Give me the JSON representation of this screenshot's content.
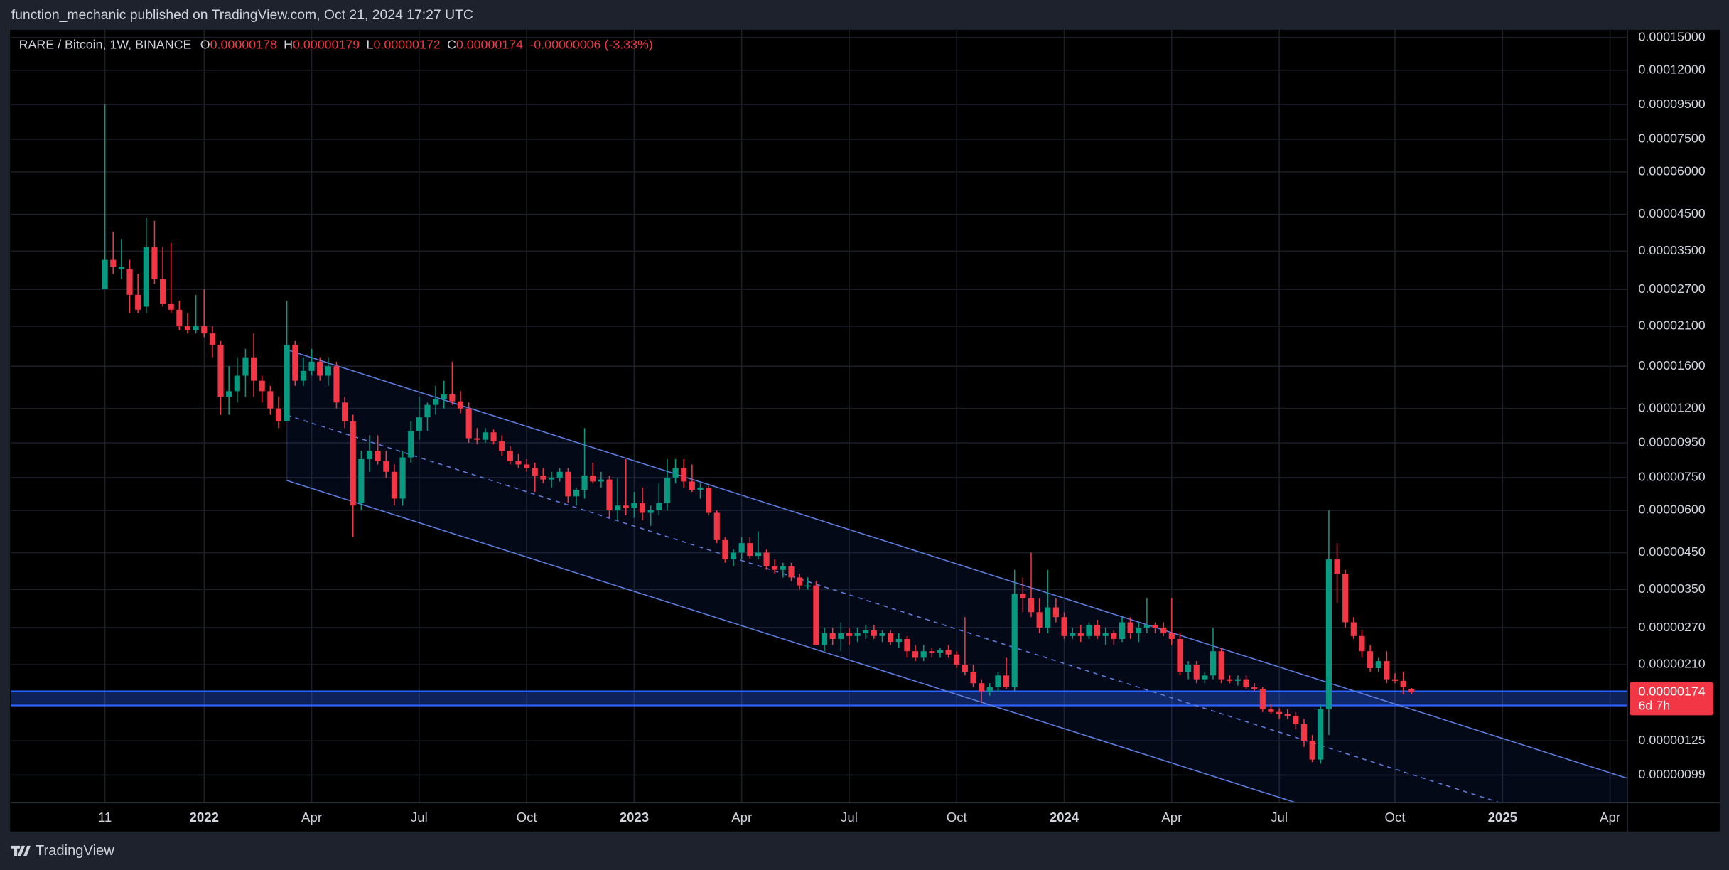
{
  "page": {
    "published": "function_mechanic published on TradingView.com, Oct 21, 2024 17:27 UTC",
    "brand": "TradingView"
  },
  "chart_data": {
    "type": "candlestick",
    "symbol": "RARE / Bitcoin, 1W, BINANCE",
    "legend": {
      "o_label": "O",
      "o": "0.00000178",
      "h_label": "H",
      "h": "0.00000179",
      "l_label": "L",
      "l": "0.00000172",
      "c_label": "C",
      "c": "0.00000174",
      "change": "-0.00000006 (-3.33%)"
    },
    "price_label": {
      "value": "0.00000174",
      "countdown": "6d 7h"
    },
    "up_color": "#089981",
    "down_color": "#f23645",
    "grid": true,
    "log_scale": true,
    "xlim": [
      -11.33,
      184.1
    ],
    "xticks": [
      {
        "value": 0,
        "label": "11"
      },
      {
        "value": 12,
        "label": "2022"
      },
      {
        "value": 25,
        "label": "Apr"
      },
      {
        "value": 38,
        "label": "Jul"
      },
      {
        "value": 51,
        "label": "Oct"
      },
      {
        "value": 64,
        "label": "2023"
      },
      {
        "value": 77,
        "label": "Apr"
      },
      {
        "value": 90,
        "label": "Jul"
      },
      {
        "value": 103,
        "label": "Oct"
      },
      {
        "value": 116,
        "label": "2024"
      },
      {
        "value": 129,
        "label": "Apr"
      },
      {
        "value": 142,
        "label": "Jul"
      },
      {
        "value": 156,
        "label": "Oct"
      },
      {
        "value": 169,
        "label": "2025"
      },
      {
        "value": 182,
        "label": "Apr"
      }
    ],
    "ylim": [
      8.2e-07,
      0.000158
    ],
    "yticks": [
      {
        "value": 0.00015,
        "label": "0.00015000"
      },
      {
        "value": 0.00012,
        "label": "0.00012000"
      },
      {
        "value": 9.5e-05,
        "label": "0.00009500"
      },
      {
        "value": 7.5e-05,
        "label": "0.00007500"
      },
      {
        "value": 6e-05,
        "label": "0.00006000"
      },
      {
        "value": 4.5e-05,
        "label": "0.00004500"
      },
      {
        "value": 3.5e-05,
        "label": "0.00003500"
      },
      {
        "value": 2.7e-05,
        "label": "0.00002700"
      },
      {
        "value": 2.1e-05,
        "label": "0.00002100"
      },
      {
        "value": 1.6e-05,
        "label": "0.00001600"
      },
      {
        "value": 1.2e-05,
        "label": "0.00001200"
      },
      {
        "value": 9.5e-06,
        "label": "0.00000950"
      },
      {
        "value": 7.5e-06,
        "label": "0.00000750"
      },
      {
        "value": 6e-06,
        "label": "0.00000600"
      },
      {
        "value": 4.5e-06,
        "label": "0.00000450"
      },
      {
        "value": 3.5e-06,
        "label": "0.00000350"
      },
      {
        "value": 2.7e-06,
        "label": "0.00000270"
      },
      {
        "value": 2.1e-06,
        "label": "0.00000210"
      },
      {
        "value": 1.25e-06,
        "label": "0.00000125"
      },
      {
        "value": 9.9e-07,
        "label": "0.00000099"
      }
    ],
    "zone": [
      1.59e-06,
      1.75e-06
    ],
    "channel": {
      "start": 22,
      "end": 184,
      "upper": [
        1.79e-05,
        9.7e-07
      ],
      "lower": [
        7.35e-06,
        4e-07
      ]
    },
    "ohlc": [
      [
        2.7e-05,
        9.5e-05,
        2.7e-05,
        3.3e-05
      ],
      [
        3.3e-05,
        4e-05,
        3e-05,
        3.15e-05
      ],
      [
        3.1e-05,
        3.8e-05,
        2.9e-05,
        3.15e-05
      ],
      [
        3.1e-05,
        3.3e-05,
        2.3e-05,
        2.6e-05
      ],
      [
        2.6e-05,
        3e-05,
        2.3e-05,
        2.35e-05
      ],
      [
        2.4e-05,
        4.4e-05,
        2.3e-05,
        3.6e-05
      ],
      [
        3.6e-05,
        4.3e-05,
        2.8e-05,
        2.9e-05
      ],
      [
        2.9e-05,
        3.6e-05,
        2.4e-05,
        2.45e-05
      ],
      [
        2.45e-05,
        3.7e-05,
        2.3e-05,
        2.35e-05
      ],
      [
        2.35e-05,
        2.5e-05,
        2.05e-05,
        2.1e-05
      ],
      [
        2.1e-05,
        2.3e-05,
        2e-05,
        2.05e-05
      ],
      [
        2.05e-05,
        2.6e-05,
        2e-05,
        2.1e-05
      ],
      [
        2.1e-05,
        2.7e-05,
        1.95e-05,
        2e-05
      ],
      [
        2e-05,
        2.1e-05,
        1.7e-05,
        1.85e-05
      ],
      [
        1.85e-05,
        1.9e-05,
        1.15e-05,
        1.3e-05
      ],
      [
        1.3e-05,
        1.6e-05,
        1.15e-05,
        1.35e-05
      ],
      [
        1.35e-05,
        1.7e-05,
        1.25e-05,
        1.5e-05
      ],
      [
        1.5e-05,
        1.8e-05,
        1.3e-05,
        1.7e-05
      ],
      [
        1.7e-05,
        2e-05,
        1.3e-05,
        1.45e-05
      ],
      [
        1.45e-05,
        1.5e-05,
        1.25e-05,
        1.35e-05
      ],
      [
        1.35e-05,
        1.4e-05,
        1.15e-05,
        1.2e-05
      ],
      [
        1.2e-05,
        1.3e-05,
        1.05e-05,
        1.1e-05
      ],
      [
        1.1e-05,
        2.5e-05,
        1.1e-05,
        1.85e-05
      ],
      [
        1.85e-05,
        1.9e-05,
        1.4e-05,
        1.45e-05
      ],
      [
        1.45e-05,
        1.7e-05,
        1.4e-05,
        1.55e-05
      ],
      [
        1.55e-05,
        1.8e-05,
        1.5e-05,
        1.65e-05
      ],
      [
        1.65e-05,
        1.7e-05,
        1.45e-05,
        1.5e-05
      ],
      [
        1.5e-05,
        1.7e-05,
        1.4e-05,
        1.6e-05
      ],
      [
        1.6e-05,
        1.65e-05,
        1.2e-05,
        1.25e-05
      ],
      [
        1.25e-05,
        1.3e-05,
        1.05e-05,
        1.1e-05
      ],
      [
        1.1e-05,
        1.15e-05,
        5e-06,
        6.2e-06
      ],
      [
        6.3e-06,
        9e-06,
        6e-06,
        8.5e-06
      ],
      [
        8.5e-06,
        1e-05,
        7.8e-06,
        9e-06
      ],
      [
        9e-06,
        1e-05,
        8.2e-06,
        8.4e-06
      ],
      [
        8.4e-06,
        9e-06,
        7.5e-06,
        7.8e-06
      ],
      [
        7.8e-06,
        8.2e-06,
        6.2e-06,
        6.5e-06
      ],
      [
        6.5e-06,
        9e-06,
        6.2e-06,
        8.6e-06
      ],
      [
        8.6e-06,
        1.1e-05,
        8.3e-06,
        1.03e-05
      ],
      [
        1.03e-05,
        1.3e-05,
        9.7e-06,
        1.13e-05
      ],
      [
        1.13e-05,
        1.25e-05,
        1.03e-05,
        1.23e-05
      ],
      [
        1.23e-05,
        1.4e-05,
        1.15e-05,
        1.28e-05
      ],
      [
        1.28e-05,
        1.45e-05,
        1.2e-05,
        1.32e-05
      ],
      [
        1.32e-05,
        1.65e-05,
        1.23e-05,
        1.26e-05
      ],
      [
        1.26e-05,
        1.35e-05,
        1.16e-05,
        1.2e-05
      ],
      [
        1.2e-05,
        1.25e-05,
        9.5e-06,
        9.8e-06
      ],
      [
        9.8e-06,
        1.05e-05,
        9.4e-06,
        9.7e-06
      ],
      [
        9.7e-06,
        1.05e-05,
        9.5e-06,
        1.02e-05
      ],
      [
        1.02e-05,
        1.04e-05,
        9.4e-06,
        9.6e-06
      ],
      [
        9.6e-06,
        1e-05,
        8.7e-06,
        9e-06
      ],
      [
        9e-06,
        9.3e-06,
        8.2e-06,
        8.4e-06
      ],
      [
        8.4e-06,
        8.8e-06,
        8e-06,
        8.2e-06
      ],
      [
        8.2e-06,
        8.5e-06,
        7.8e-06,
        8e-06
      ],
      [
        8e-06,
        8.3e-06,
        6.8e-06,
        7.6e-06
      ],
      [
        7.6e-06,
        8e-06,
        7.2e-06,
        7.4e-06
      ],
      [
        7.4e-06,
        7.8e-06,
        7e-06,
        7.5e-06
      ],
      [
        7.5e-06,
        8e-06,
        7.3e-06,
        7.8e-06
      ],
      [
        7.8e-06,
        8e-06,
        6.3e-06,
        6.6e-06
      ],
      [
        6.6e-06,
        7e-06,
        6.2e-06,
        6.9e-06
      ],
      [
        6.9e-06,
        1.05e-05,
        6.5e-06,
        7.6e-06
      ],
      [
        7.6e-06,
        8.3e-06,
        7.2e-06,
        7.3e-06
      ],
      [
        7.3e-06,
        7.8e-06,
        7e-06,
        7.4e-06
      ],
      [
        7.4e-06,
        7.6e-06,
        5.7e-06,
        6e-06
      ],
      [
        6e-06,
        7.5e-06,
        5.6e-06,
        6.2e-06
      ],
      [
        6.2e-06,
        8.5e-06,
        5.8e-06,
        6.1e-06
      ],
      [
        6.1e-06,
        6.8e-06,
        5.7e-06,
        6.3e-06
      ],
      [
        6.3e-06,
        7e-06,
        5.6e-06,
        5.9e-06
      ],
      [
        5.9e-06,
        6.2e-06,
        5.4e-06,
        6e-06
      ],
      [
        6e-06,
        7.2e-06,
        5.8e-06,
        6.3e-06
      ],
      [
        6.3e-06,
        8.5e-06,
        6e-06,
        7.5e-06
      ],
      [
        7.5e-06,
        8.5e-06,
        7.2e-06,
        8e-06
      ],
      [
        8e-06,
        8.5e-06,
        7e-06,
        7.3e-06
      ],
      [
        7.3e-06,
        8.2e-06,
        6.8e-06,
        6.9e-06
      ],
      [
        6.9e-06,
        7.2e-06,
        6.5e-06,
        7e-06
      ],
      [
        7e-06,
        7.1e-06,
        5.8e-06,
        5.9e-06
      ],
      [
        5.9e-06,
        6e-06,
        4.8e-06,
        4.9e-06
      ],
      [
        4.9e-06,
        5e-06,
        4.2e-06,
        4.3e-06
      ],
      [
        4.3e-06,
        4.6e-06,
        4.1e-06,
        4.5e-06
      ],
      [
        4.5e-06,
        5e-06,
        4.3e-06,
        4.8e-06
      ],
      [
        4.8e-06,
        5e-06,
        4.3e-06,
        4.4e-06
      ],
      [
        4.4e-06,
        5.2e-06,
        4.3e-06,
        4.5e-06
      ],
      [
        4.5e-06,
        4.6e-06,
        4e-06,
        4.1e-06
      ],
      [
        4.1e-06,
        4.3e-06,
        3.9e-06,
        4e-06
      ],
      [
        4e-06,
        4.2e-06,
        3.8e-06,
        4.1e-06
      ],
      [
        4.1e-06,
        4.2e-06,
        3.7e-06,
        3.8e-06
      ],
      [
        3.8e-06,
        3.9e-06,
        3.5e-06,
        3.6e-06
      ],
      [
        3.6e-06,
        3.8e-06,
        3.5e-06,
        3.6e-06
      ],
      [
        3.6e-06,
        3.7e-06,
        2.4e-06,
        2.4e-06
      ],
      [
        2.4e-06,
        2.7e-06,
        2.3e-06,
        2.6e-06
      ],
      [
        2.6e-06,
        2.7e-06,
        2.4e-06,
        2.5e-06
      ],
      [
        2.5e-06,
        2.8e-06,
        2.3e-06,
        2.6e-06
      ],
      [
        2.6e-06,
        2.7e-06,
        2.4e-06,
        2.55e-06
      ],
      [
        2.55e-06,
        2.7e-06,
        2.45e-06,
        2.6e-06
      ],
      [
        2.6e-06,
        2.75e-06,
        2.5e-06,
        2.65e-06
      ],
      [
        2.65e-06,
        2.75e-06,
        2.5e-06,
        2.55e-06
      ],
      [
        2.55e-06,
        2.65e-06,
        2.45e-06,
        2.6e-06
      ],
      [
        2.6e-06,
        2.65e-06,
        2.4e-06,
        2.45e-06
      ],
      [
        2.45e-06,
        2.6e-06,
        2.35e-06,
        2.5e-06
      ],
      [
        2.5e-06,
        2.55e-06,
        2.2e-06,
        2.3e-06
      ],
      [
        2.3e-06,
        2.4e-06,
        2.15e-06,
        2.2e-06
      ],
      [
        2.2e-06,
        2.4e-06,
        2.15e-06,
        2.3e-06
      ],
      [
        2.3e-06,
        2.35e-06,
        2.2e-06,
        2.28e-06
      ],
      [
        2.28e-06,
        2.35e-06,
        2.2e-06,
        2.32e-06
      ],
      [
        2.32e-06,
        2.4e-06,
        2.2e-06,
        2.25e-06
      ],
      [
        2.25e-06,
        2.3e-06,
        2.05e-06,
        2.1e-06
      ],
      [
        2.1e-06,
        2.9e-06,
        1.95e-06,
        2e-06
      ],
      [
        2e-06,
        2.1e-06,
        1.8e-06,
        1.85e-06
      ],
      [
        1.85e-06,
        1.9e-06,
        1.62e-06,
        1.75e-06
      ],
      [
        1.75e-06,
        1.85e-06,
        1.7e-06,
        1.8e-06
      ],
      [
        1.8e-06,
        2e-06,
        1.75e-06,
        1.95e-06
      ],
      [
        1.95e-06,
        2.2e-06,
        1.78e-06,
        1.8e-06
      ],
      [
        1.8e-06,
        4e-06,
        1.75e-06,
        3.4e-06
      ],
      [
        3.4e-06,
        3.8e-06,
        3e-06,
        3.3e-06
      ],
      [
        3.3e-06,
        4.5e-06,
        2.9e-06,
        3e-06
      ],
      [
        3e-06,
        3.3e-06,
        2.6e-06,
        2.7e-06
      ],
      [
        2.7e-06,
        4e-06,
        2.6e-06,
        3.1e-06
      ],
      [
        3.1e-06,
        3.3e-06,
        2.8e-06,
        2.9e-06
      ],
      [
        2.9e-06,
        3e-06,
        2.5e-06,
        2.55e-06
      ],
      [
        2.55e-06,
        2.7e-06,
        2.5e-06,
        2.6e-06
      ],
      [
        2.6e-06,
        2.75e-06,
        2.45e-06,
        2.55e-06
      ],
      [
        2.55e-06,
        2.8e-06,
        2.5e-06,
        2.75e-06
      ],
      [
        2.75e-06,
        2.85e-06,
        2.5e-06,
        2.55e-06
      ],
      [
        2.55e-06,
        2.7e-06,
        2.4e-06,
        2.6e-06
      ],
      [
        2.6e-06,
        2.65e-06,
        2.4e-06,
        2.5e-06
      ],
      [
        2.5e-06,
        2.9e-06,
        2.45e-06,
        2.8e-06
      ],
      [
        2.8e-06,
        2.9e-06,
        2.5e-06,
        2.6e-06
      ],
      [
        2.6e-06,
        2.8e-06,
        2.45e-06,
        2.7e-06
      ],
      [
        2.7e-06,
        3.3e-06,
        2.6e-06,
        2.75e-06
      ],
      [
        2.75e-06,
        2.8e-06,
        2.6e-06,
        2.7e-06
      ],
      [
        2.7e-06,
        2.8e-06,
        2.55e-06,
        2.6e-06
      ],
      [
        2.6e-06,
        3.3e-06,
        2.4e-06,
        2.5e-06
      ],
      [
        2.5e-06,
        2.6e-06,
        1.95e-06,
        2e-06
      ],
      [
        2e-06,
        2.15e-06,
        1.9e-06,
        2.1e-06
      ],
      [
        2.1e-06,
        2.15e-06,
        1.85e-06,
        1.9e-06
      ],
      [
        1.9e-06,
        2e-06,
        1.85e-06,
        1.95e-06
      ],
      [
        1.95e-06,
        2.7e-06,
        1.9e-06,
        2.3e-06
      ],
      [
        2.3e-06,
        2.35e-06,
        1.85e-06,
        1.9e-06
      ],
      [
        1.9e-06,
        1.95e-06,
        1.85e-06,
        1.88e-06
      ],
      [
        1.88e-06,
        1.95e-06,
        1.82e-06,
        1.9e-06
      ],
      [
        1.9e-06,
        1.95e-06,
        1.78e-06,
        1.8e-06
      ],
      [
        1.8e-06,
        1.85e-06,
        1.75e-06,
        1.78e-06
      ],
      [
        1.78e-06,
        1.8e-06,
        1.52e-06,
        1.55e-06
      ],
      [
        1.55e-06,
        1.6e-06,
        1.5e-06,
        1.52e-06
      ],
      [
        1.52e-06,
        1.56e-06,
        1.45e-06,
        1.5e-06
      ],
      [
        1.5e-06,
        1.55e-06,
        1.45e-06,
        1.48e-06
      ],
      [
        1.48e-06,
        1.52e-06,
        1.35e-06,
        1.4e-06
      ],
      [
        1.4e-06,
        1.45e-06,
        1.2e-06,
        1.25e-06
      ],
      [
        1.25e-06,
        1.3e-06,
        1.08e-06,
        1.1e-06
      ],
      [
        1.1e-06,
        1.6e-06,
        1.07e-06,
        1.55e-06
      ],
      [
        1.55e-06,
        6e-06,
        1.3e-06,
        4.3e-06
      ],
      [
        4.3e-06,
        4.8e-06,
        3.2e-06,
        3.9e-06
      ],
      [
        3.9e-06,
        4e-06,
        2.7e-06,
        2.8e-06
      ],
      [
        2.8e-06,
        2.9e-06,
        2.5e-06,
        2.55e-06
      ],
      [
        2.55e-06,
        2.65e-06,
        2.2e-06,
        2.3e-06
      ],
      [
        2.3e-06,
        2.4e-06,
        2e-06,
        2.05e-06
      ],
      [
        2.05e-06,
        2.2e-06,
        2e-06,
        2.15e-06
      ],
      [
        2.15e-06,
        2.3e-06,
        1.85e-06,
        1.9e-06
      ],
      [
        1.9e-06,
        1.98e-06,
        1.85e-06,
        1.88e-06
      ],
      [
        1.88e-06,
        2e-06,
        1.72e-06,
        1.8e-06
      ],
      [
        1.78e-06,
        1.79e-06,
        1.72e-06,
        1.74e-06
      ]
    ]
  }
}
